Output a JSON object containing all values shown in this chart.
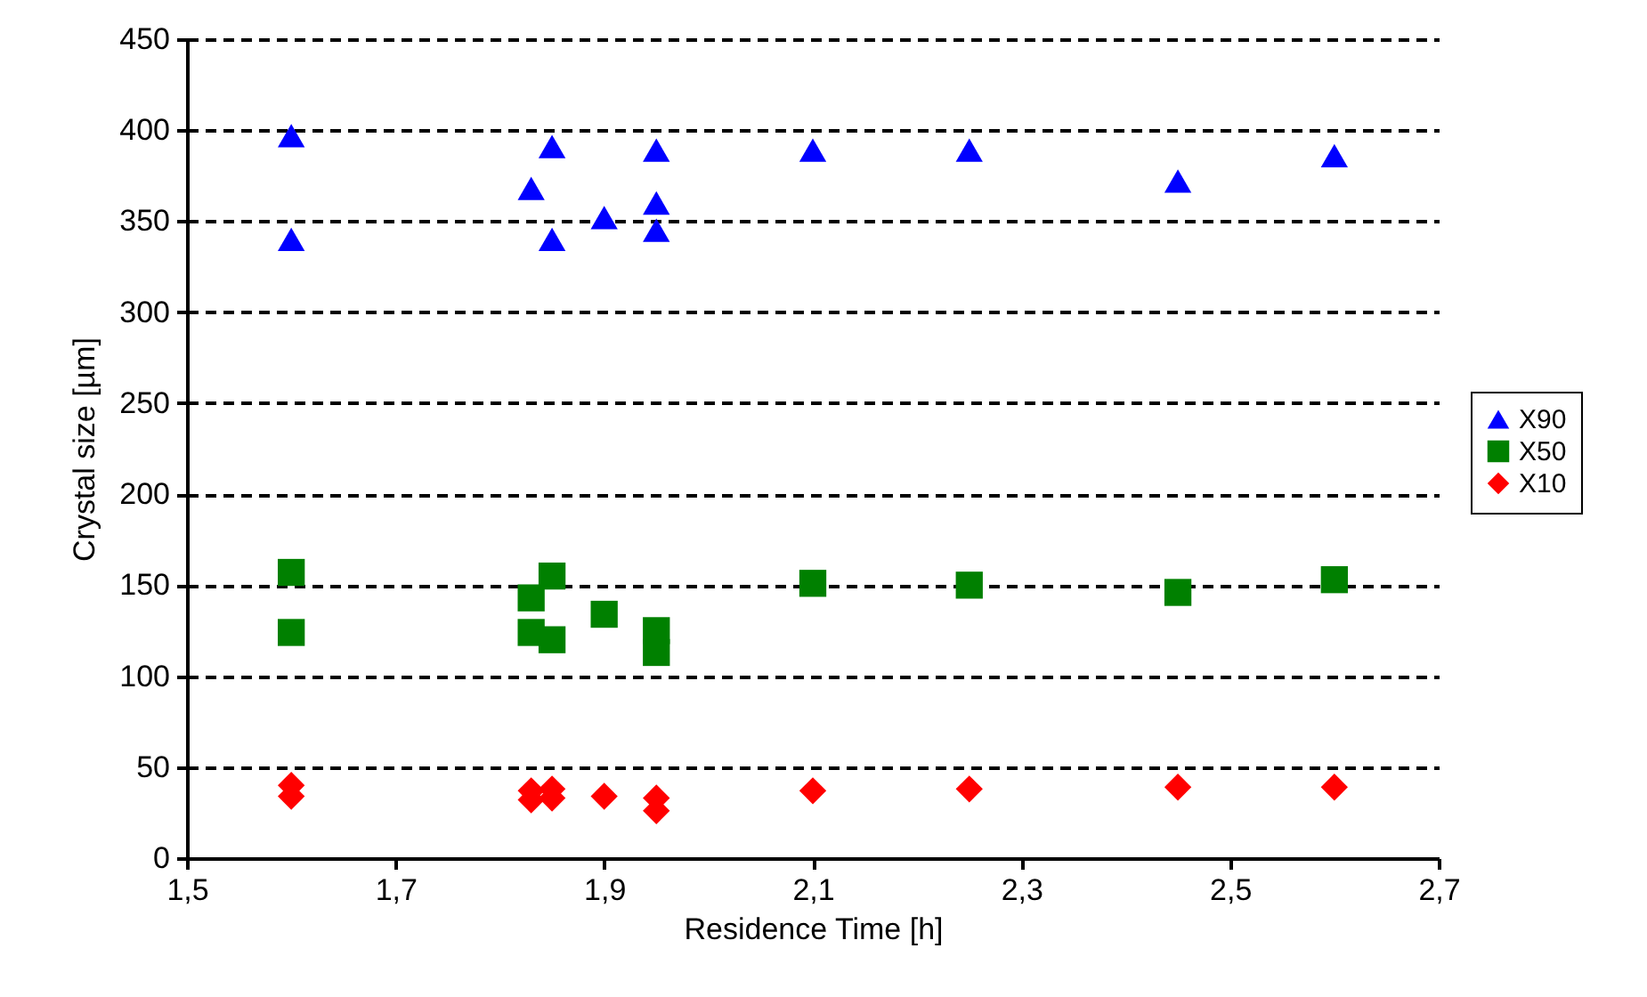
{
  "chart_data": {
    "type": "scatter",
    "xlabel": "Residence Time [h]",
    "ylabel": "Crystal size [µm]",
    "xlim": [
      1.5,
      2.7
    ],
    "xticks": [
      {
        "value": 1.5,
        "label": "1,5"
      },
      {
        "value": 1.7,
        "label": "1,7"
      },
      {
        "value": 1.9,
        "label": "1,9"
      },
      {
        "value": 2.1,
        "label": "2,1"
      },
      {
        "value": 2.3,
        "label": "2,3"
      },
      {
        "value": 2.5,
        "label": "2,5"
      },
      {
        "value": 2.7,
        "label": "2,7"
      }
    ],
    "ylim": [
      0,
      450
    ],
    "yticks": [
      0,
      50,
      100,
      150,
      200,
      250,
      300,
      350,
      400,
      450
    ],
    "grid": "y",
    "legend": "right",
    "series": [
      {
        "name": "X90",
        "color": "#0000ff",
        "marker": "triangle",
        "x": [
          1.6,
          1.6,
          1.83,
          1.85,
          1.85,
          1.9,
          1.95,
          1.95,
          1.95,
          2.1,
          2.25,
          2.45,
          2.6
        ],
        "values": [
          397,
          340,
          368,
          391,
          340,
          352,
          389,
          360,
          345,
          389,
          389,
          372,
          386
        ]
      },
      {
        "name": "X50",
        "color": "#008000",
        "marker": "square",
        "x": [
          1.6,
          1.6,
          1.83,
          1.83,
          1.85,
          1.85,
          1.9,
          1.95,
          1.95,
          2.1,
          2.25,
          2.45,
          2.6
        ],
        "values": [
          157,
          124,
          143,
          124,
          155,
          120,
          134,
          125,
          113,
          151,
          150,
          146,
          153
        ]
      },
      {
        "name": "X10",
        "color": "#ff0000",
        "marker": "diamond",
        "x": [
          1.6,
          1.6,
          1.83,
          1.83,
          1.85,
          1.85,
          1.9,
          1.95,
          1.95,
          2.1,
          2.25,
          2.45,
          2.6
        ],
        "values": [
          40,
          34,
          37,
          32,
          38,
          33,
          34,
          33,
          26,
          37,
          38,
          39,
          39
        ]
      }
    ]
  }
}
